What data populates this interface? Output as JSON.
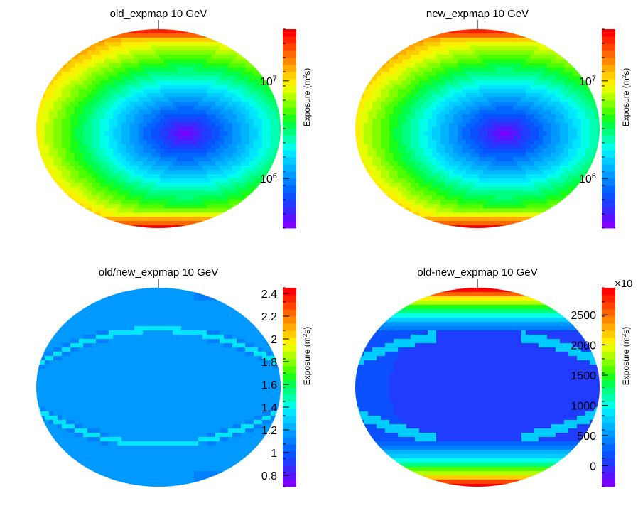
{
  "colorbar_label": "Exposure (m",
  "colorbar_label_sup": "2",
  "colorbar_label_tail": "s)",
  "palette": [
    "#7f00ff",
    "#5a12ff",
    "#3c28ff",
    "#1f3cff",
    "#0a50ff",
    "#0066ff",
    "#007fff",
    "#0099ff",
    "#00b3ff",
    "#00ccff",
    "#00e6ff",
    "#00ffe6",
    "#00ffb3",
    "#00ff80",
    "#00ff4d",
    "#1aff1a",
    "#4dff00",
    "#80ff00",
    "#b3ff00",
    "#e6ff00",
    "#ffee00",
    "#ffcc00",
    "#ffaa00",
    "#ff8800",
    "#ff6600",
    "#ff4400",
    "#ff2200",
    "#ff0000"
  ],
  "chart_data": [
    {
      "type": "heatmap",
      "projection": "aitoff",
      "title": "old_expmap 10 GeV",
      "scale": "log",
      "colorbar_ticks": [
        {
          "label": "10",
          "exp": "6",
          "frac": 0.75
        },
        {
          "label": "10",
          "exp": "7",
          "frac": 0.26
        }
      ]
    },
    {
      "type": "heatmap",
      "projection": "aitoff",
      "title": "new_expmap 10 GeV",
      "scale": "log",
      "colorbar_ticks": [
        {
          "label": "10",
          "exp": "6",
          "frac": 0.75
        },
        {
          "label": "10",
          "exp": "7",
          "frac": 0.26
        }
      ]
    },
    {
      "type": "heatmap",
      "projection": "aitoff",
      "title": "old/new_expmap 10 GeV",
      "scale": "linear",
      "zlim": [
        0.7,
        2.45
      ],
      "colorbar_ticks": [
        "2.4",
        "2.2",
        "2",
        "1.8",
        "1.6",
        "1.4",
        "1.2",
        "1",
        "0.8"
      ]
    },
    {
      "type": "heatmap",
      "projection": "aitoff",
      "title": "old-new_expmap 10 GeV",
      "scale": "linear",
      "zlim": [
        -350,
        2950
      ],
      "multiplier": "×10",
      "colorbar_ticks": [
        "2500",
        "2000",
        "1500",
        "1000",
        "500",
        "0"
      ]
    }
  ]
}
